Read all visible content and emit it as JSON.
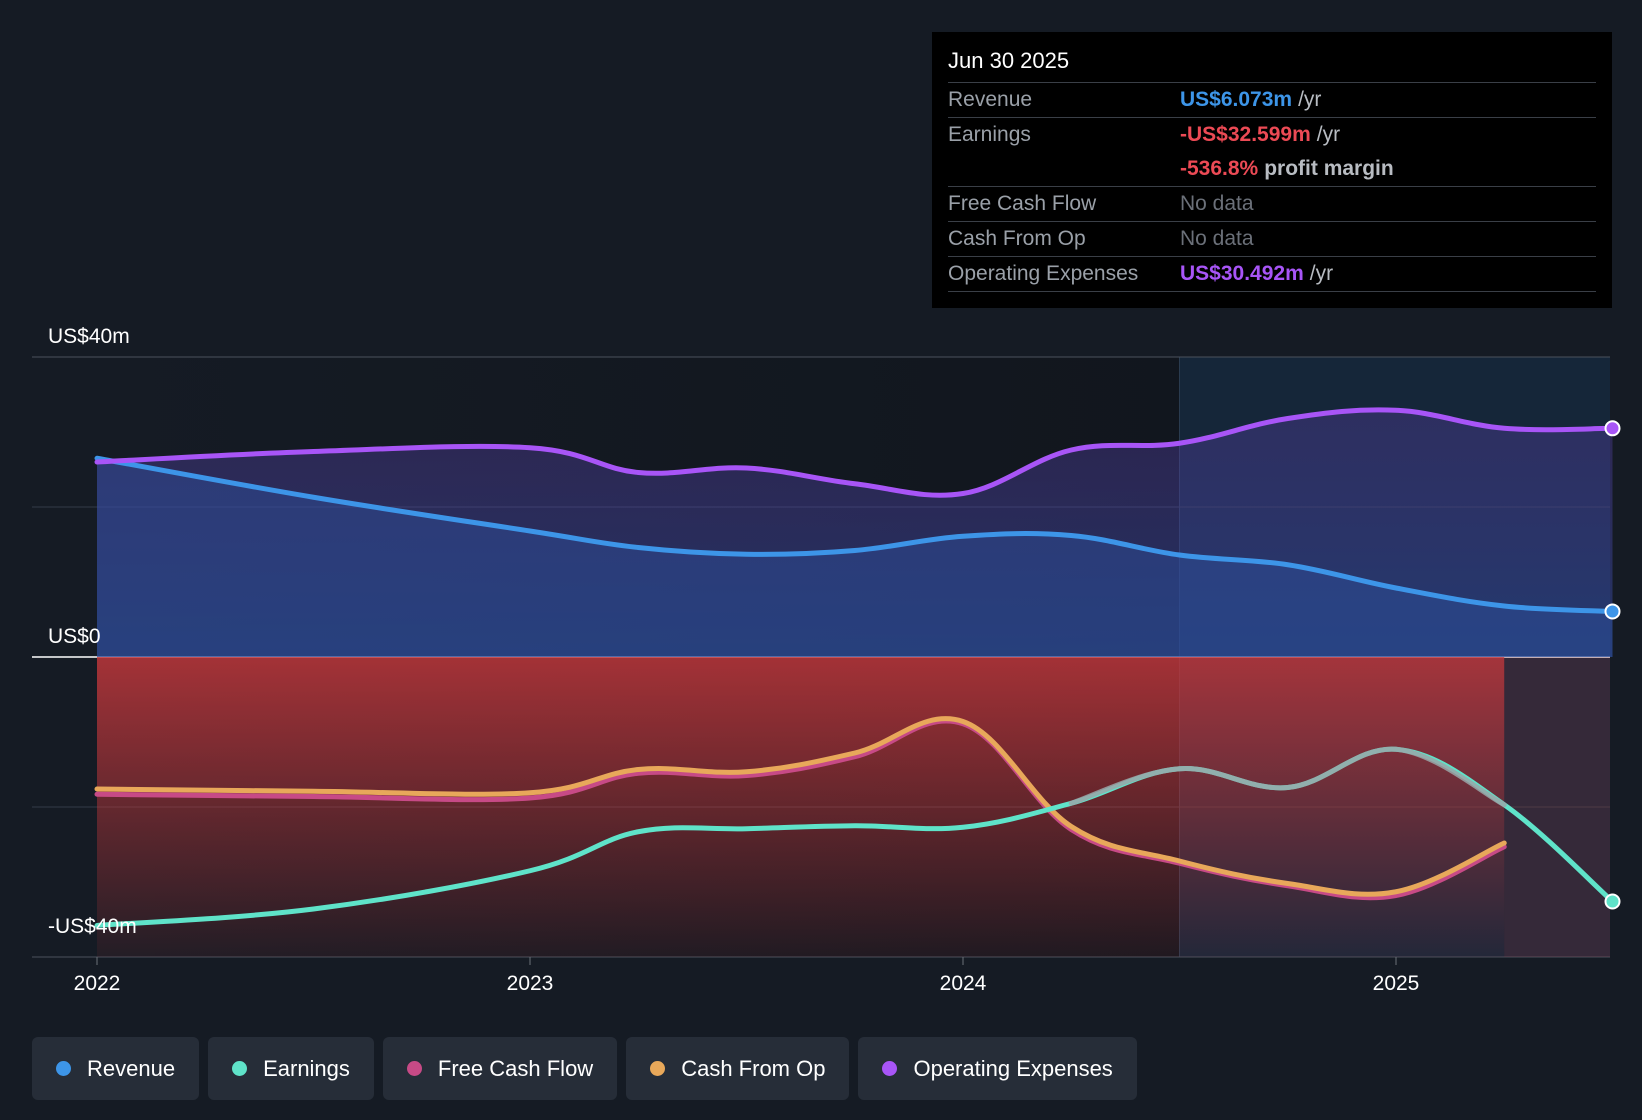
{
  "tooltip": {
    "date": "Jun 30 2025",
    "rows": [
      {
        "label": "Revenue",
        "value": "US$6.073m",
        "unit": "/yr",
        "color": "#3d95e8"
      },
      {
        "label": "Earnings",
        "value": "-US$32.599m",
        "unit": "/yr",
        "color": "#ec4a55"
      },
      {
        "label": "",
        "value": "-536.8%",
        "unit": "profit margin",
        "color": "#ec4a55"
      },
      {
        "label": "Free Cash Flow",
        "value": "No data",
        "unit": "",
        "color": "#6b7079"
      },
      {
        "label": "Cash From Op",
        "value": "No data",
        "unit": "",
        "color": "#6b7079"
      },
      {
        "label": "Operating Expenses",
        "value": "US$30.492m",
        "unit": "/yr",
        "color": "#a855f7"
      }
    ]
  },
  "legend": [
    {
      "label": "Revenue",
      "color": "#3d95e8"
    },
    {
      "label": "Earnings",
      "color": "#5fe3c9"
    },
    {
      "label": "Free Cash Flow",
      "color": "#c74a86"
    },
    {
      "label": "Cash From Op",
      "color": "#e8a85a"
    },
    {
      "label": "Operating Expenses",
      "color": "#a855f7"
    }
  ],
  "chart_data": {
    "type": "line",
    "y_tick_labels": [
      "US$40m",
      "US$0",
      "-US$40m"
    ],
    "x_tick_labels": [
      "2022",
      "2023",
      "2024",
      "2025"
    ],
    "ylim": [
      -40,
      40
    ],
    "xlim": [
      2022.0,
      2025.5
    ],
    "forecast_start": 2024.5,
    "grid": true,
    "legend_position": "bottom",
    "series": [
      {
        "name": "Revenue",
        "color": "#3d95e8",
        "x": [
          2022.0,
          2022.5,
          2023.0,
          2023.25,
          2023.5,
          2023.75,
          2024.0,
          2024.25,
          2024.5,
          2024.75,
          2025.0,
          2025.25,
          2025.5
        ],
        "values": [
          26.5,
          21.3,
          16.8,
          14.6,
          13.7,
          14.2,
          16.1,
          16.2,
          13.6,
          12.3,
          9.2,
          6.8,
          6.073
        ]
      },
      {
        "name": "Earnings",
        "color": "#5fe3c9",
        "x": [
          2022.0,
          2022.5,
          2023.0,
          2023.25,
          2023.5,
          2023.75,
          2024.0,
          2024.25,
          2024.5,
          2024.75,
          2025.0,
          2025.25,
          2025.5
        ],
        "values": [
          -35.8,
          -33.6,
          -28.5,
          -23.3,
          -22.9,
          -22.5,
          -22.7,
          -19.5,
          -14.9,
          -17.4,
          -12.3,
          -19.7,
          -32.599
        ]
      },
      {
        "name": "Free Cash Flow",
        "color": "#c74a86",
        "x": [
          2022.0,
          2022.5,
          2023.0,
          2023.25,
          2023.5,
          2023.75,
          2024.0,
          2024.25,
          2024.5,
          2024.75,
          2025.0,
          2025.25
        ],
        "values": [
          -18.3,
          -18.6,
          -18.8,
          -15.5,
          -15.8,
          -13.3,
          -8.9,
          -23.0,
          -27.5,
          -30.5,
          -31.8,
          -25.3
        ]
      },
      {
        "name": "Cash From Op",
        "color": "#e8a85a",
        "x": [
          2022.0,
          2022.5,
          2023.0,
          2023.25,
          2023.5,
          2023.75,
          2024.0,
          2024.25,
          2024.5,
          2024.75,
          2025.0,
          2025.25
        ],
        "values": [
          -17.6,
          -17.9,
          -18.1,
          -15.0,
          -15.3,
          -12.8,
          -8.6,
          -22.6,
          -27.2,
          -30.2,
          -31.3,
          -24.8
        ]
      },
      {
        "name": "Operating Expenses",
        "color": "#a855f7",
        "x": [
          2022.0,
          2022.5,
          2023.0,
          2023.25,
          2023.5,
          2023.75,
          2024.0,
          2024.25,
          2024.5,
          2024.75,
          2025.0,
          2025.25,
          2025.5
        ],
        "values": [
          26.0,
          27.4,
          27.9,
          24.6,
          25.2,
          23.1,
          21.8,
          27.6,
          28.5,
          31.8,
          32.9,
          30.5,
          30.492
        ]
      }
    ]
  }
}
